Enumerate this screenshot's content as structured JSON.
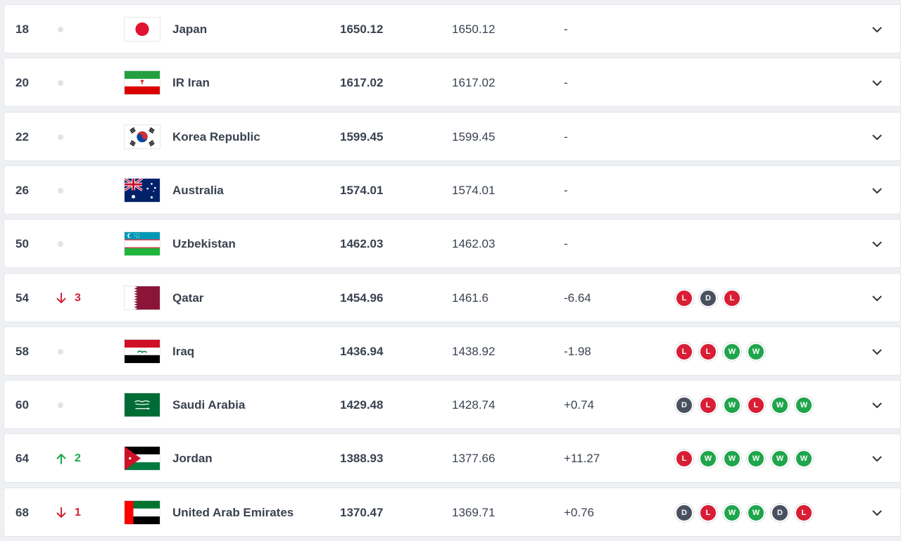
{
  "rankings": [
    {
      "rank": "18",
      "move": "none",
      "move_value": "",
      "country": "Japan",
      "flag": "japan-flag",
      "total": "1650.12",
      "previous": "1650.12",
      "change": "-",
      "form": []
    },
    {
      "rank": "20",
      "move": "none",
      "move_value": "",
      "country": "IR Iran",
      "flag": "iran-flag",
      "total": "1617.02",
      "previous": "1617.02",
      "change": "-",
      "form": []
    },
    {
      "rank": "22",
      "move": "none",
      "move_value": "",
      "country": "Korea Republic",
      "flag": "korea-flag",
      "total": "1599.45",
      "previous": "1599.45",
      "change": "-",
      "form": []
    },
    {
      "rank": "26",
      "move": "none",
      "move_value": "",
      "country": "Australia",
      "flag": "australia-flag",
      "total": "1574.01",
      "previous": "1574.01",
      "change": "-",
      "form": []
    },
    {
      "rank": "50",
      "move": "none",
      "move_value": "",
      "country": "Uzbekistan",
      "flag": "uzbekistan-flag",
      "total": "1462.03",
      "previous": "1462.03",
      "change": "-",
      "form": []
    },
    {
      "rank": "54",
      "move": "down",
      "move_value": "3",
      "country": "Qatar",
      "flag": "qatar-flag",
      "total": "1454.96",
      "previous": "1461.6",
      "change": "-6.64",
      "form": [
        "L",
        "D",
        "L"
      ]
    },
    {
      "rank": "58",
      "move": "none",
      "move_value": "",
      "country": "Iraq",
      "flag": "iraq-flag",
      "total": "1436.94",
      "previous": "1438.92",
      "change": "-1.98",
      "form": [
        "L",
        "L",
        "W",
        "W"
      ]
    },
    {
      "rank": "60",
      "move": "none",
      "move_value": "",
      "country": "Saudi Arabia",
      "flag": "saudi-arabia-flag",
      "total": "1429.48",
      "previous": "1428.74",
      "change": "+0.74",
      "form": [
        "D",
        "L",
        "W",
        "L",
        "W",
        "W"
      ]
    },
    {
      "rank": "64",
      "move": "up",
      "move_value": "2",
      "country": "Jordan",
      "flag": "jordan-flag",
      "total": "1388.93",
      "previous": "1377.66",
      "change": "+11.27",
      "form": [
        "L",
        "W",
        "W",
        "W",
        "W",
        "W"
      ]
    },
    {
      "rank": "68",
      "move": "down",
      "move_value": "1",
      "country": "United Arab Emirates",
      "flag": "uae-flag",
      "total": "1370.47",
      "previous": "1369.71",
      "change": "+0.76",
      "form": [
        "D",
        "L",
        "W",
        "W",
        "D",
        "L"
      ]
    }
  ],
  "colors": {
    "loss": "#d81e35",
    "win": "#1fa54b",
    "draw": "#4a5060",
    "move_down": "#d4213b",
    "move_up": "#1aa54a"
  },
  "icons": {
    "expand": "chevron-down-icon",
    "no_change": "dot-icon",
    "up": "arrow-up-icon",
    "down": "arrow-down-icon"
  }
}
